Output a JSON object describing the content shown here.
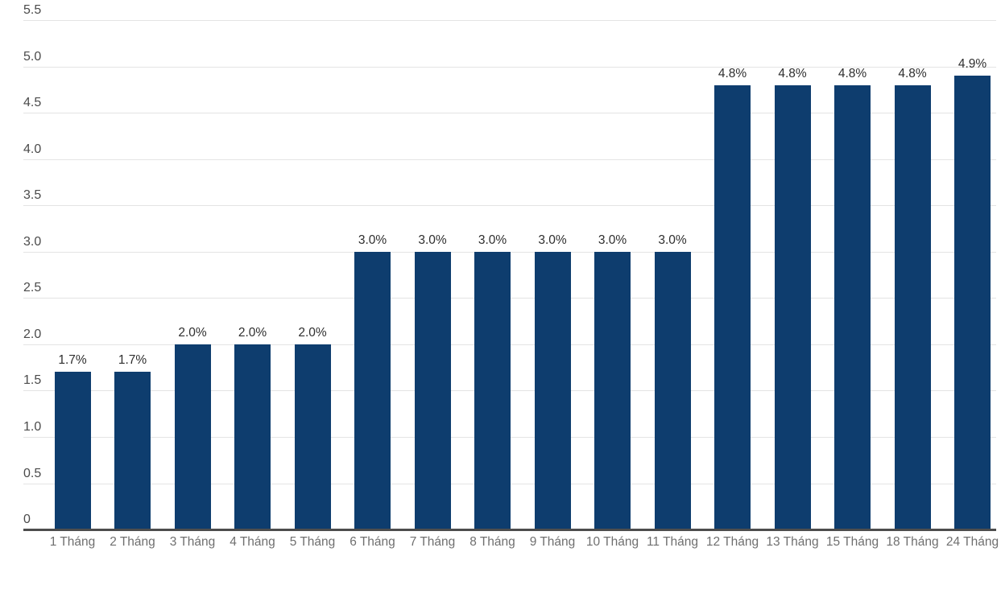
{
  "chart_data": {
    "type": "bar",
    "title": "",
    "xlabel": "",
    "ylabel": "",
    "categories": [
      "1 Tháng",
      "2 Tháng",
      "3 Tháng",
      "4 Tháng",
      "5 Tháng",
      "6 Tháng",
      "7 Tháng",
      "8 Tháng",
      "9 Tháng",
      "10 Tháng",
      "11 Tháng",
      "12 Tháng",
      "13 Tháng",
      "15 Tháng",
      "18 Tháng",
      "24 Tháng"
    ],
    "values": [
      1.7,
      1.7,
      2.0,
      2.0,
      2.0,
      3.0,
      3.0,
      3.0,
      3.0,
      3.0,
      3.0,
      4.8,
      4.8,
      4.8,
      4.8,
      4.9
    ],
    "value_labels": [
      "1.7%",
      "1.7%",
      "2.0%",
      "2.0%",
      "2.0%",
      "3.0%",
      "3.0%",
      "3.0%",
      "3.0%",
      "3.0%",
      "3.0%",
      "4.8%",
      "4.8%",
      "4.8%",
      "4.8%",
      "4.9%"
    ],
    "ylim": [
      0,
      5.5
    ],
    "yticks": {
      "values": [
        0,
        0.5,
        1,
        1.5,
        2,
        2.5,
        3,
        3.5,
        4,
        4.5,
        5,
        5.5
      ],
      "labels": [
        "0",
        "0.5",
        "1.0",
        "1.5",
        "2.0",
        "2.5",
        "3.0",
        "3.5",
        "4.0",
        "4.5",
        "5.0",
        "5.5"
      ]
    },
    "grid": "horizontal-only",
    "legend": "none",
    "colors": {
      "bar": "#0e3d6e",
      "gridline": "#e4e4e4",
      "axis_line": "#4d4d4d",
      "value_label": "#2e2e2e",
      "y_tick_label": "#4b4b4b",
      "x_tick_label": "#6f6f6f",
      "background": "#ffffff"
    }
  }
}
